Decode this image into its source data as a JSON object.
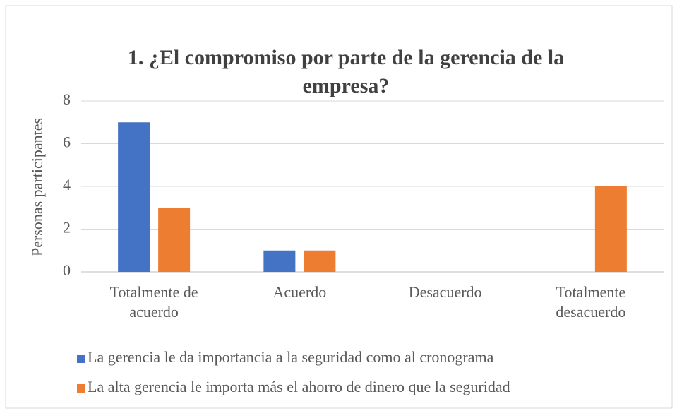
{
  "chart_data": {
    "type": "bar",
    "title": "1. ¿El compromiso por parte de la gerencia de la empresa?",
    "y_label": "Personas participantes",
    "categories": [
      "Totalmente de acuerdo",
      "Acuerdo",
      "Desacuerdo",
      "Totalmente desacuerdo"
    ],
    "series": [
      {
        "name": "La gerencia le da importancia a la seguridad como al cronograma",
        "color": "#4472c4",
        "values": [
          7,
          1,
          0,
          0
        ]
      },
      {
        "name": "La alta gerencia le importa más el ahorro de dinero que la seguridad",
        "color": "#ed7d31",
        "values": [
          3,
          1,
          0,
          4
        ]
      }
    ],
    "ylim": [
      0,
      8
    ],
    "yticks": [
      0,
      2,
      4,
      6,
      8
    ],
    "grid": true,
    "legend": "bottom"
  }
}
